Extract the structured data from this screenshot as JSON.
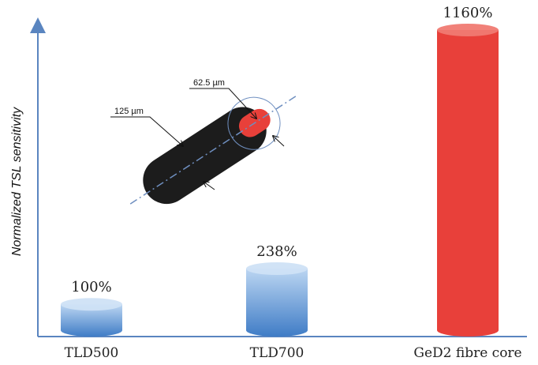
{
  "chart_data": {
    "type": "bar",
    "y_label": "Normalized TSL sensitivity",
    "categories": [
      "TLD500",
      "TLD700",
      "GeD2 fibre core"
    ],
    "values": [
      100,
      238,
      1160
    ],
    "value_labels": [
      "100%",
      "238%",
      "1160%"
    ],
    "colors": [
      "#5b8fd0",
      "#5b8fd0",
      "#e8403a"
    ],
    "annotations": [
      "125 µm",
      "62.5 µm"
    ]
  }
}
